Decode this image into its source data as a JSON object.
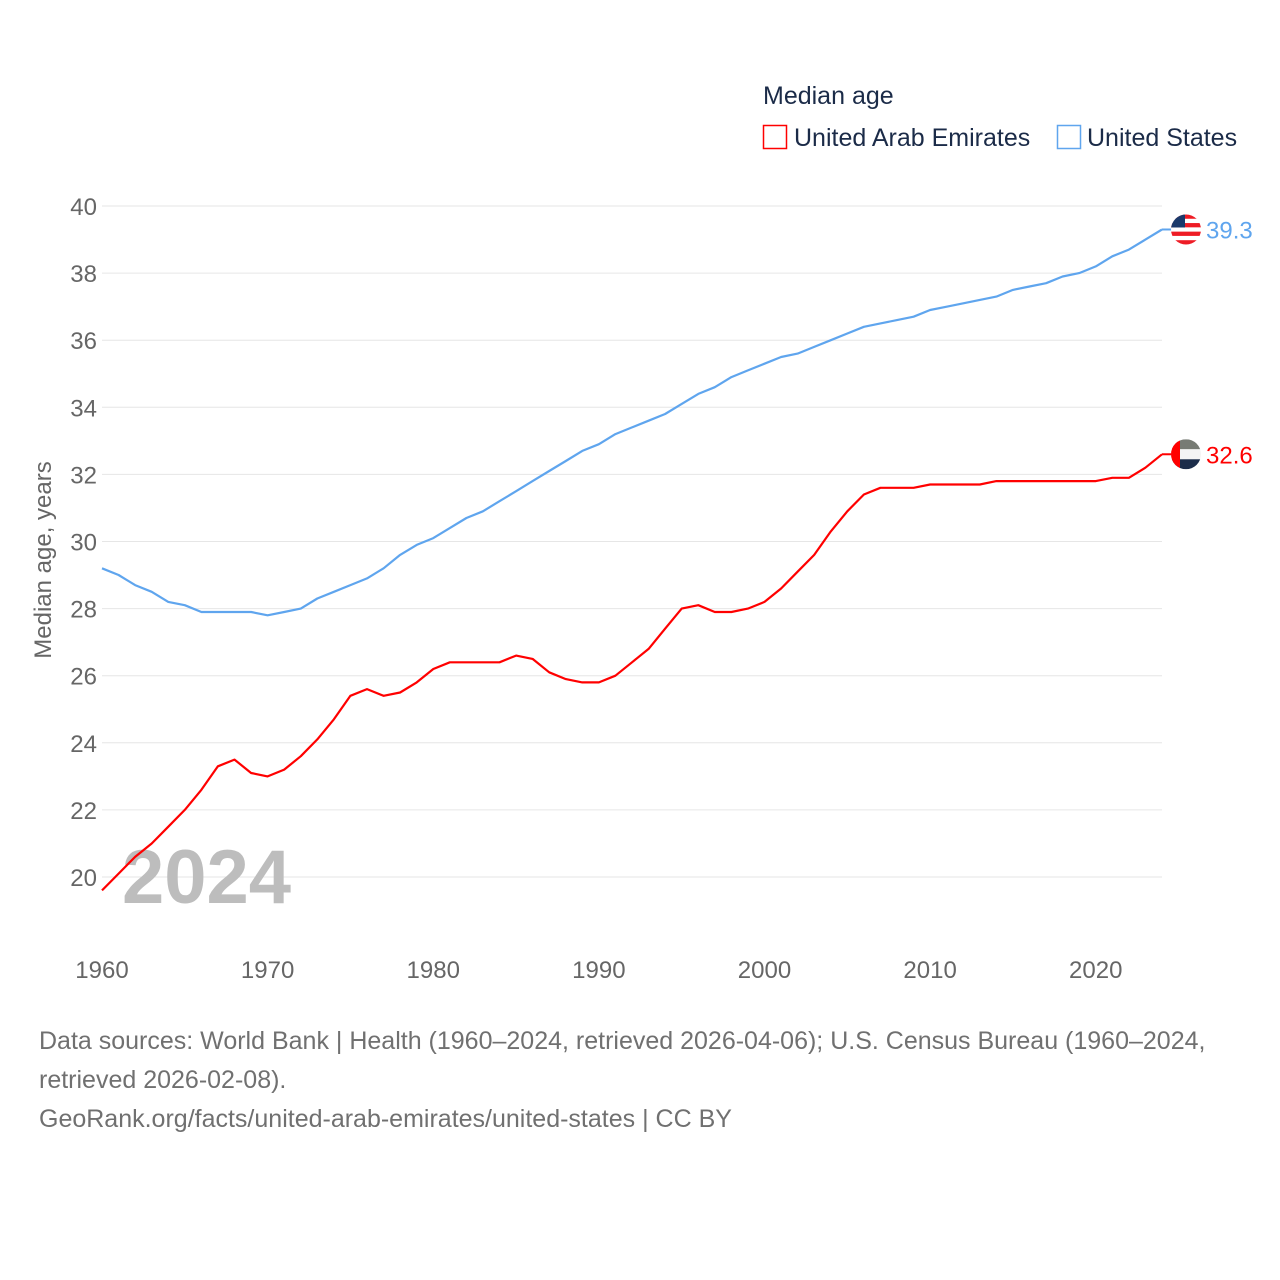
{
  "chart_data": {
    "type": "line",
    "title": "",
    "legend_title": "Median age",
    "legend_placement": "top-right",
    "xlabel": "",
    "ylabel": "Median age, years",
    "xlim": [
      1960,
      2024
    ],
    "ylim": [
      19,
      40
    ],
    "x_ticks": [
      1960,
      1970,
      1980,
      1990,
      2000,
      2010,
      2020
    ],
    "y_ticks": [
      20,
      22,
      24,
      26,
      28,
      30,
      32,
      34,
      36,
      38,
      40
    ],
    "grid": true,
    "year_watermark": "2024",
    "x": [
      1960,
      1961,
      1962,
      1963,
      1964,
      1965,
      1966,
      1967,
      1968,
      1969,
      1970,
      1971,
      1972,
      1973,
      1974,
      1975,
      1976,
      1977,
      1978,
      1979,
      1980,
      1981,
      1982,
      1983,
      1984,
      1985,
      1986,
      1987,
      1988,
      1989,
      1990,
      1991,
      1992,
      1993,
      1994,
      1995,
      1996,
      1997,
      1998,
      1999,
      2000,
      2001,
      2002,
      2003,
      2004,
      2005,
      2006,
      2007,
      2008,
      2009,
      2010,
      2011,
      2012,
      2013,
      2014,
      2015,
      2016,
      2017,
      2018,
      2019,
      2020,
      2021,
      2022,
      2023,
      2024
    ],
    "series": [
      {
        "name": "United Arab Emirates",
        "color": "#ff0000",
        "end_label": "32.6",
        "flag": "uae-flag",
        "values": [
          19.6,
          20.1,
          20.6,
          21.0,
          21.5,
          22.0,
          22.6,
          23.3,
          23.5,
          23.1,
          23.0,
          23.2,
          23.6,
          24.1,
          24.7,
          25.4,
          25.6,
          25.4,
          25.5,
          25.8,
          26.2,
          26.4,
          26.4,
          26.4,
          26.4,
          26.6,
          26.5,
          26.1,
          25.9,
          25.8,
          25.8,
          26.0,
          26.4,
          26.8,
          27.4,
          28.0,
          28.1,
          27.9,
          27.9,
          28.0,
          28.2,
          28.6,
          29.1,
          29.6,
          30.3,
          30.9,
          31.4,
          31.6,
          31.6,
          31.6,
          31.7,
          31.7,
          31.7,
          31.7,
          31.8,
          31.8,
          31.8,
          31.8,
          31.8,
          31.8,
          31.8,
          31.9,
          31.9,
          32.2,
          32.6
        ]
      },
      {
        "name": "United States",
        "color": "#5fa5ee",
        "end_label": "39.3",
        "flag": "us-flag",
        "values": [
          29.2,
          29.0,
          28.7,
          28.5,
          28.2,
          28.1,
          27.9,
          27.9,
          27.9,
          27.9,
          27.8,
          27.9,
          28.0,
          28.3,
          28.5,
          28.7,
          28.9,
          29.2,
          29.6,
          29.9,
          30.1,
          30.4,
          30.7,
          30.9,
          31.2,
          31.5,
          31.8,
          32.1,
          32.4,
          32.7,
          32.9,
          33.2,
          33.4,
          33.6,
          33.8,
          34.1,
          34.4,
          34.6,
          34.9,
          35.1,
          35.3,
          35.5,
          35.6,
          35.8,
          36.0,
          36.2,
          36.4,
          36.5,
          36.6,
          36.7,
          36.9,
          37.0,
          37.1,
          37.2,
          37.3,
          37.5,
          37.6,
          37.7,
          37.9,
          38.0,
          38.2,
          38.5,
          38.7,
          39.0,
          39.3
        ]
      }
    ]
  },
  "footer": {
    "sources": "Data sources: World Bank | Health (1960–2024, retrieved 2026-04-06); U.S. Census Bureau (1960–2024, retrieved 2026-02-08).",
    "link": "GeoRank.org/facts/united-arab-emirates/united-states | CC BY"
  }
}
